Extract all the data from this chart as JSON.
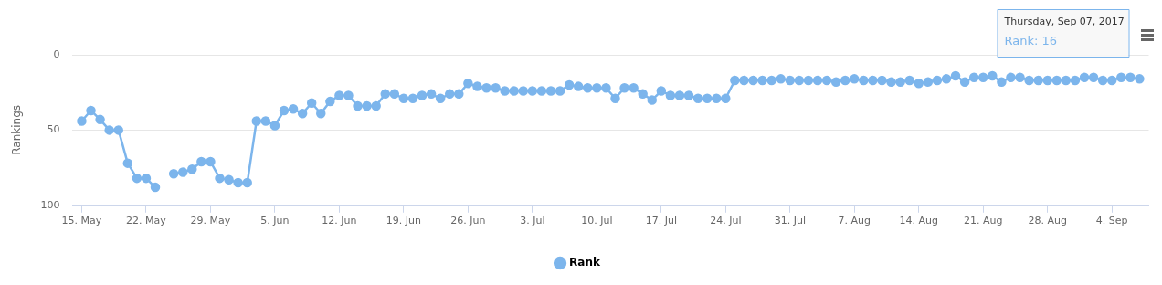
{
  "chart_data": {
    "type": "line",
    "ylabel": "Rankings",
    "x": [
      "2017-05-15",
      "2017-05-16",
      "2017-05-17",
      "2017-05-18",
      "2017-05-19",
      "2017-05-20",
      "2017-05-21",
      "2017-05-22",
      "2017-05-23",
      "2017-05-24",
      "2017-05-25",
      "2017-05-26",
      "2017-05-27",
      "2017-05-28",
      "2017-05-29",
      "2017-05-30",
      "2017-05-31",
      "2017-06-01",
      "2017-06-02",
      "2017-06-03",
      "2017-06-04",
      "2017-06-05",
      "2017-06-06",
      "2017-06-07",
      "2017-06-08",
      "2017-06-09",
      "2017-06-10",
      "2017-06-11",
      "2017-06-12",
      "2017-06-13",
      "2017-06-14",
      "2017-06-15",
      "2017-06-16",
      "2017-06-17",
      "2017-06-18",
      "2017-06-19",
      "2017-06-20",
      "2017-06-21",
      "2017-06-22",
      "2017-06-23",
      "2017-06-24",
      "2017-06-25",
      "2017-06-26",
      "2017-06-27",
      "2017-06-28",
      "2017-06-29",
      "2017-06-30",
      "2017-07-01",
      "2017-07-02",
      "2017-07-03",
      "2017-07-04",
      "2017-07-05",
      "2017-07-06",
      "2017-07-07",
      "2017-07-08",
      "2017-07-09",
      "2017-07-10",
      "2017-07-11",
      "2017-07-12",
      "2017-07-13",
      "2017-07-14",
      "2017-07-15",
      "2017-07-16",
      "2017-07-17",
      "2017-07-18",
      "2017-07-19",
      "2017-07-20",
      "2017-07-21",
      "2017-07-22",
      "2017-07-23",
      "2017-07-24",
      "2017-07-25",
      "2017-07-26",
      "2017-07-27",
      "2017-07-28",
      "2017-07-29",
      "2017-07-30",
      "2017-07-31",
      "2017-08-01",
      "2017-08-02",
      "2017-08-03",
      "2017-08-04",
      "2017-08-05",
      "2017-08-06",
      "2017-08-07",
      "2017-08-08",
      "2017-08-09",
      "2017-08-10",
      "2017-08-11",
      "2017-08-12",
      "2017-08-13",
      "2017-08-14",
      "2017-08-15",
      "2017-08-16",
      "2017-08-17",
      "2017-08-18",
      "2017-08-19",
      "2017-08-20",
      "2017-08-21",
      "2017-08-22",
      "2017-08-23",
      "2017-08-24",
      "2017-08-25",
      "2017-08-26",
      "2017-08-27",
      "2017-08-28",
      "2017-08-29",
      "2017-08-30",
      "2017-08-31",
      "2017-09-01",
      "2017-09-02",
      "2017-09-03",
      "2017-09-04",
      "2017-09-05",
      "2017-09-06",
      "2017-09-07"
    ],
    "series": [
      {
        "name": "Rank",
        "color": "#7cb5ec",
        "values": [
          44,
          37,
          43,
          50,
          50,
          72,
          82,
          82,
          88,
          null,
          79,
          78,
          76,
          71,
          71,
          82,
          83,
          85,
          85,
          44,
          44,
          47,
          37,
          36,
          39,
          32,
          39,
          31,
          27,
          27,
          34,
          34,
          34,
          26,
          26,
          29,
          29,
          27,
          26,
          29,
          26,
          26,
          19,
          21,
          22,
          22,
          24,
          24,
          24,
          24,
          24,
          24,
          24,
          20,
          21,
          22,
          22,
          22,
          29,
          22,
          22,
          26,
          30,
          24,
          27,
          27,
          27,
          29,
          29,
          29,
          29,
          17,
          17,
          17,
          17,
          17,
          16,
          17,
          17,
          17,
          17,
          17,
          18,
          17,
          16,
          17,
          17,
          17,
          18,
          18,
          17,
          19,
          18,
          17,
          16,
          14,
          18,
          15,
          15,
          14,
          18,
          15,
          15,
          17,
          17,
          17,
          17,
          17,
          17,
          15,
          15,
          17,
          17,
          15,
          15,
          16
        ]
      }
    ],
    "xlim": [
      "2017-05-14",
      "2017-09-08"
    ],
    "xticks": [
      {
        "value": "2017-05-15",
        "label": "15. May"
      },
      {
        "value": "2017-05-22",
        "label": "22. May"
      },
      {
        "value": "2017-05-29",
        "label": "29. May"
      },
      {
        "value": "2017-06-05",
        "label": "5. Jun"
      },
      {
        "value": "2017-06-12",
        "label": "12. Jun"
      },
      {
        "value": "2017-06-19",
        "label": "19. Jun"
      },
      {
        "value": "2017-06-26",
        "label": "26. Jun"
      },
      {
        "value": "2017-07-03",
        "label": "3. Jul"
      },
      {
        "value": "2017-07-10",
        "label": "10. Jul"
      },
      {
        "value": "2017-07-17",
        "label": "17. Jul"
      },
      {
        "value": "2017-07-24",
        "label": "24. Jul"
      },
      {
        "value": "2017-07-31",
        "label": "31. Jul"
      },
      {
        "value": "2017-08-07",
        "label": "7. Aug"
      },
      {
        "value": "2017-08-14",
        "label": "14. Aug"
      },
      {
        "value": "2017-08-21",
        "label": "21. Aug"
      },
      {
        "value": "2017-08-28",
        "label": "28. Aug"
      },
      {
        "value": "2017-09-04",
        "label": "4. Sep"
      }
    ],
    "ylim": [
      100,
      0
    ],
    "yticks": [
      0,
      50,
      100
    ],
    "grid": "y",
    "legend": "bottom",
    "marker": "circle",
    "line_style": "solid",
    "annotations": [
      "Thursday, Sep 07, 2017",
      "Rank: 16"
    ]
  }
}
